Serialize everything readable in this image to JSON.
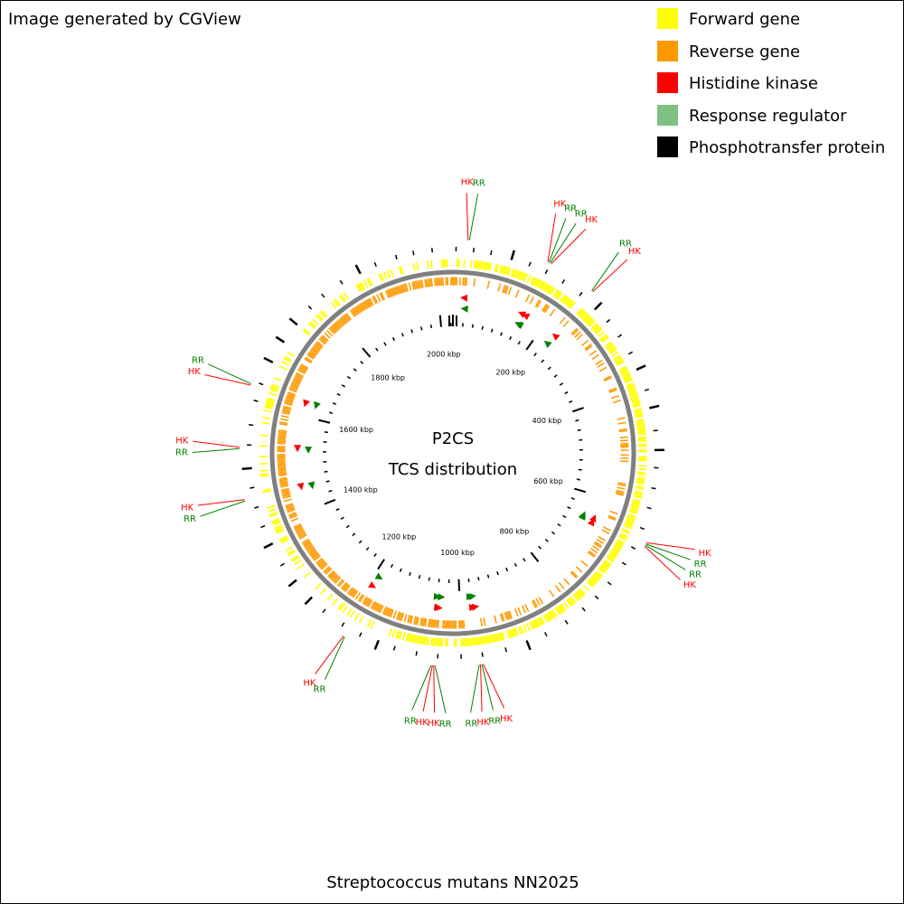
{
  "header": {
    "credit": "Image generated by CGView"
  },
  "legend": [
    {
      "label": "Forward gene",
      "color": "#ffff00"
    },
    {
      "label": "Reverse gene",
      "color": "#ff9900"
    },
    {
      "label": "Histidine kinase",
      "color": "#ff0000"
    },
    {
      "label": "Response regulator",
      "color": "#80c080"
    },
    {
      "label": "Phosphotransfer protein",
      "color": "#000000"
    }
  ],
  "map": {
    "title": "P2CS",
    "subtitle": "TCS distribution",
    "genome_kbp": 2030,
    "scale_labels": [
      "200 kbp",
      "400 kbp",
      "600 kbp",
      "800 kbp",
      "1000 kbp",
      "1200 kbp",
      "1400 kbp",
      "1600 kbp",
      "1800 kbp",
      "2000 kbp"
    ],
    "scale_values_kbp": [
      200,
      400,
      600,
      800,
      1000,
      1200,
      1400,
      1600,
      1800,
      2000
    ],
    "marker_labels": {
      "hk": "HK",
      "rr": "RR"
    },
    "marker_colors": {
      "hk": "#ff0000",
      "rr": "#008000"
    },
    "gene_colors": {
      "forward": "#ffff00",
      "reverse": "#ff9900",
      "backbone": "#808080",
      "phosphotransfer": "#000000"
    },
    "tcs_groups": [
      {
        "pos_kbp": 24,
        "features": [
          "HK",
          "RR"
        ]
      },
      {
        "pos_kbp": 152,
        "features": [
          "HK",
          "RR",
          "RR",
          "HK"
        ]
      },
      {
        "pos_kbp": 230,
        "features": [
          "RR",
          "HK"
        ]
      },
      {
        "pos_kbp": 651,
        "features": [
          "HK",
          "RR",
          "RR",
          "HK"
        ]
      },
      {
        "pos_kbp": 972,
        "features": [
          "HK",
          "RR",
          "HK",
          "RR"
        ]
      },
      {
        "pos_kbp": 1045,
        "features": [
          "RR",
          "HK",
          "HK",
          "RR"
        ]
      },
      {
        "pos_kbp": 1188,
        "features": [
          "RR",
          "HK"
        ]
      },
      {
        "pos_kbp": 1450,
        "features": [
          "RR",
          "HK"
        ]
      },
      {
        "pos_kbp": 1530,
        "features": [
          "RR",
          "HK"
        ]
      },
      {
        "pos_kbp": 1628,
        "features": [
          "HK",
          "RR"
        ]
      }
    ]
  },
  "footer": {
    "organism": "Streptococcus mutans NN2025"
  }
}
